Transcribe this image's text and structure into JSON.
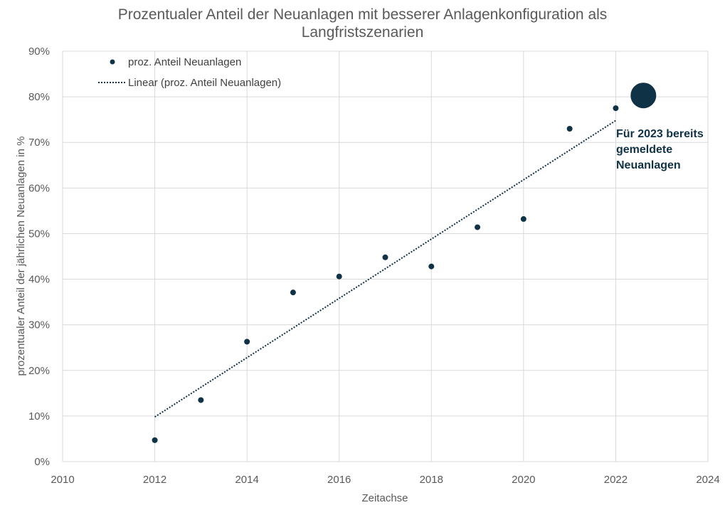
{
  "title_lines": [
    "Prozentualer Anteil der Neuanlagen mit besserer Anlagenkonfiguration als",
    "Langfristszenarien"
  ],
  "colors": {
    "marker": "#0f3246",
    "grid": "#d9d9d9",
    "text": "#595959"
  },
  "chart_data": {
    "type": "scatter",
    "title": "Prozentualer Anteil der Neuanlagen mit besserer Anlagenkonfiguration als Langfristszenarien",
    "xlabel": "Zeitachse",
    "ylabel": "prozentualer Anteil der jährlichen Neuanlagen in %",
    "xlim": [
      2010,
      2024
    ],
    "ylim": [
      0,
      90
    ],
    "x_ticks": [
      2010,
      2012,
      2014,
      2016,
      2018,
      2020,
      2022,
      2024
    ],
    "y_ticks": [
      0,
      10,
      20,
      30,
      40,
      50,
      60,
      70,
      80,
      90
    ],
    "y_tick_labels": [
      "0%",
      "10%",
      "20%",
      "30%",
      "40%",
      "50%",
      "60%",
      "70%",
      "80%",
      "90%"
    ],
    "grid": true,
    "legend_position": "top-left",
    "series": [
      {
        "name": "proz. Anteil Neuanlagen",
        "x": [
          2012,
          2013,
          2014,
          2015,
          2016,
          2017,
          2018,
          2019,
          2020,
          2021,
          2022
        ],
        "y": [
          4.7,
          13.5,
          26.3,
          37.1,
          40.6,
          44.8,
          42.8,
          51.4,
          53.2,
          73.0,
          77.5
        ]
      },
      {
        "name": "Linear (proz. Anteil Neuanlagen)",
        "type": "trendline",
        "x": [
          2012,
          2022
        ],
        "y": [
          9.8,
          74.8
        ]
      }
    ],
    "highlight_point": {
      "x": 2022.6,
      "y": 80.3
    },
    "annotation_lines": [
      "Für 2023 bereits",
      "gemeldete",
      "Neuanlagen"
    ]
  }
}
